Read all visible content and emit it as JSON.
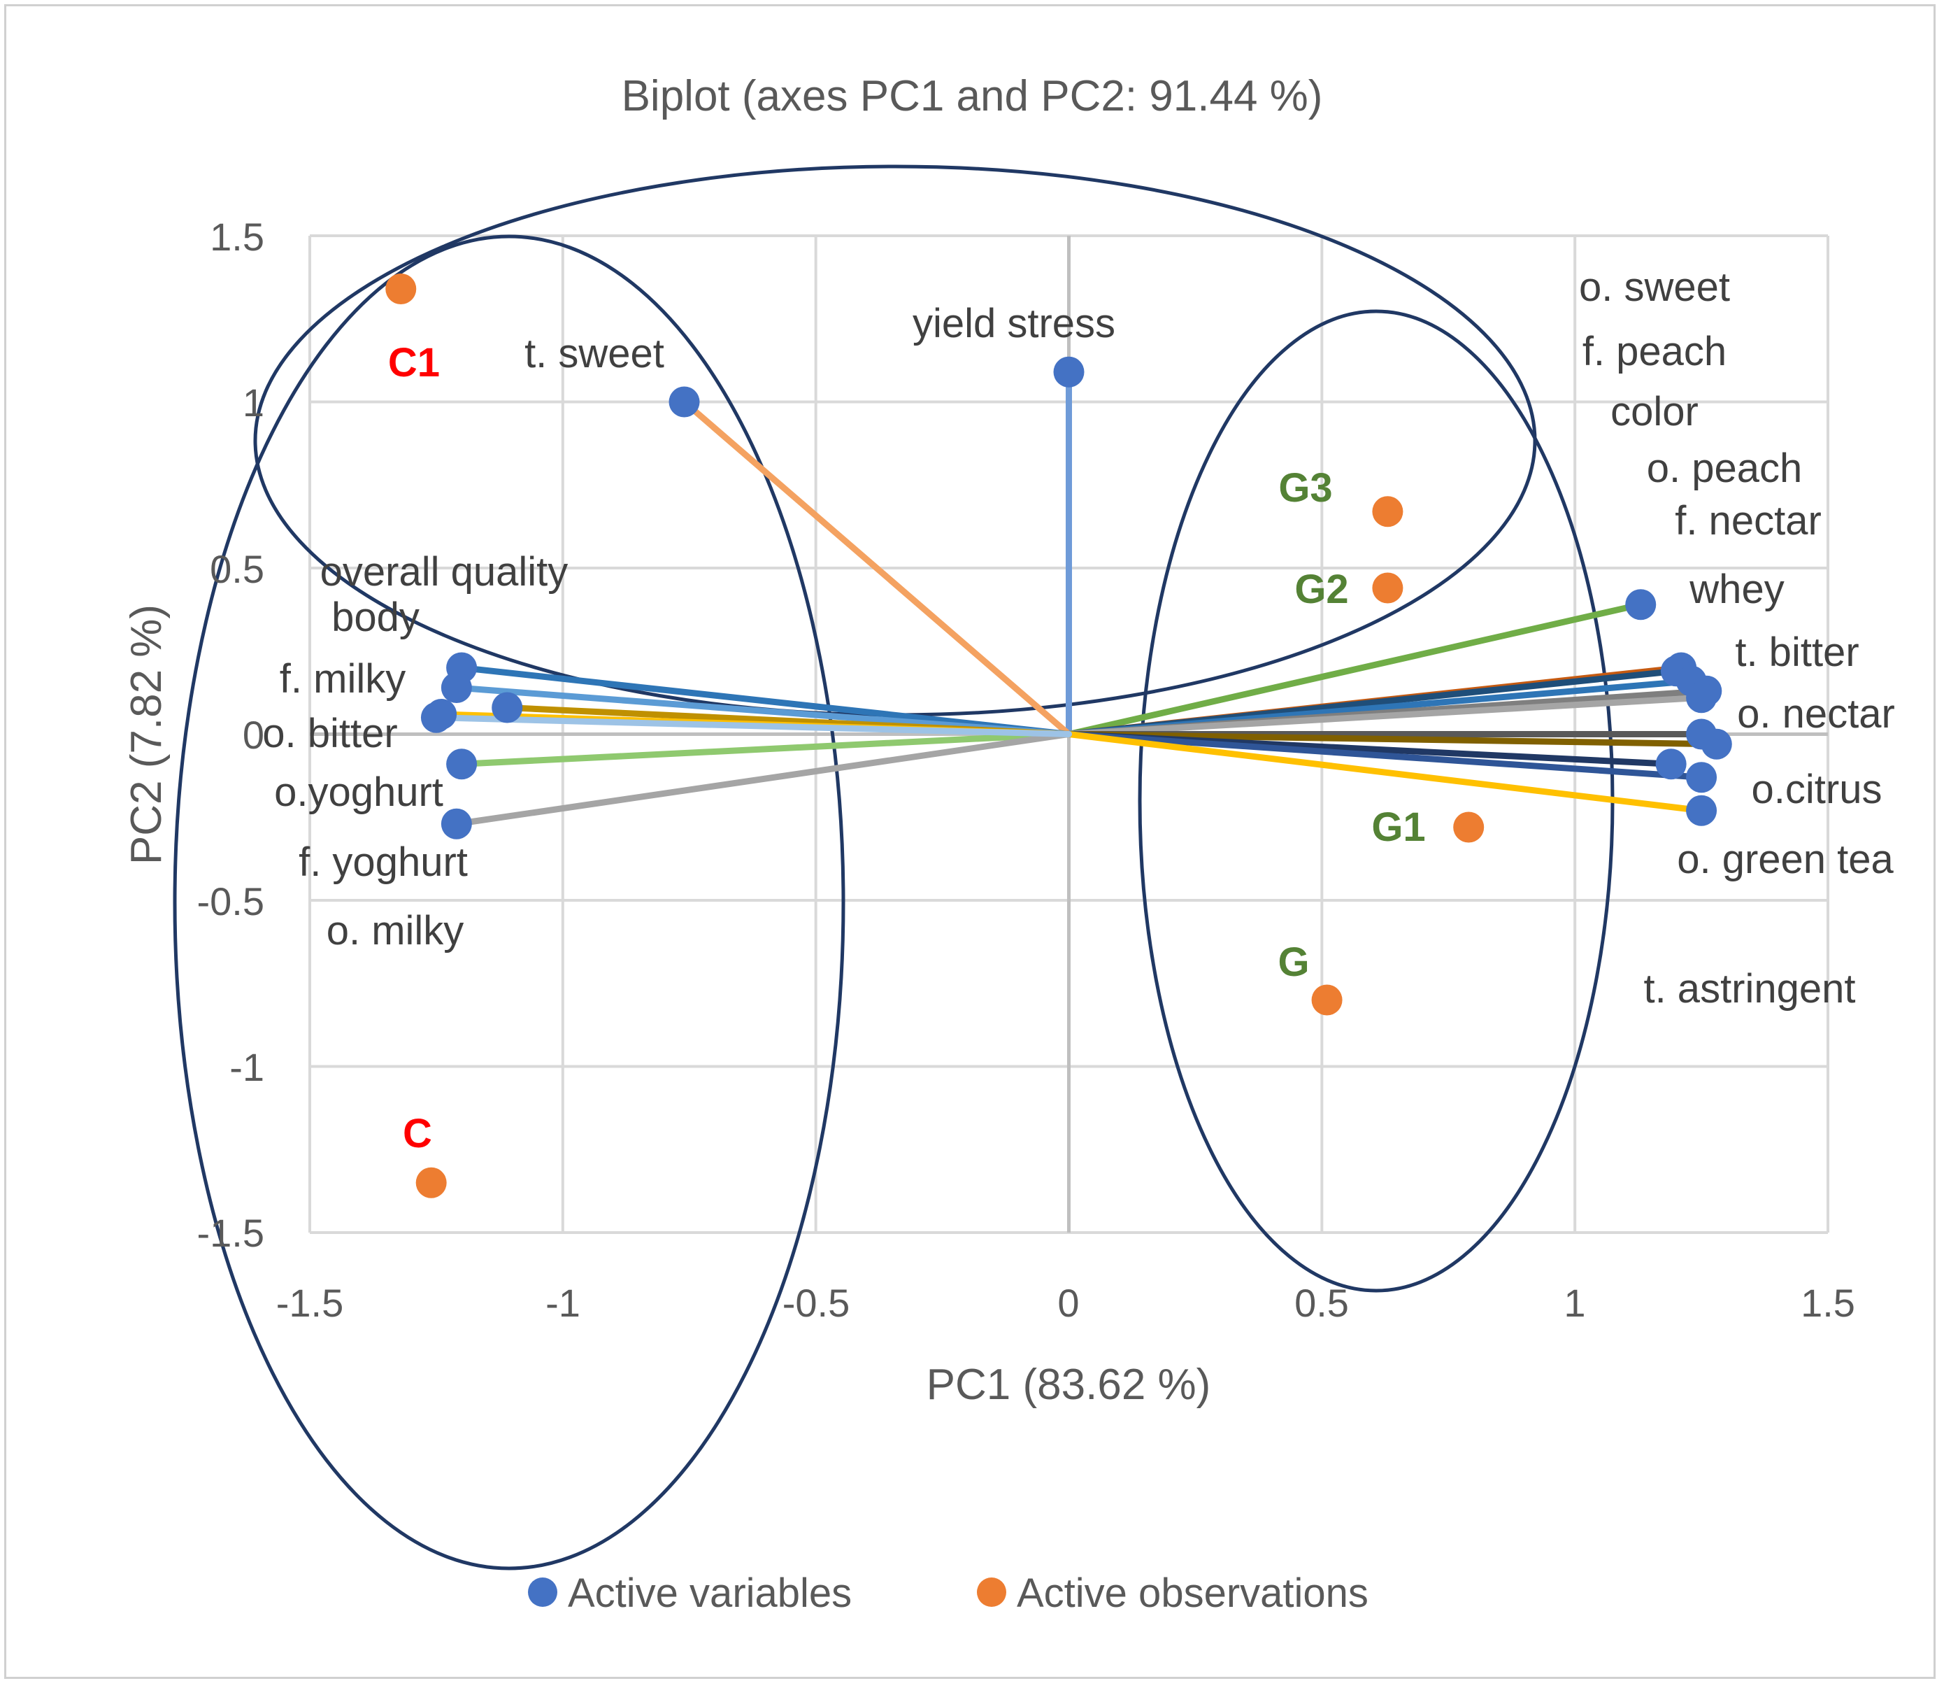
{
  "chart_data": {
    "type": "scatter",
    "title": "Biplot (axes PC1 and PC2: 91.44 %)",
    "xlabel": "PC1 (83.62 %)",
    "ylabel": "PC2 (7.82 %)",
    "xlim": [
      -1.5,
      1.5
    ],
    "ylim": [
      -1.5,
      1.5
    ],
    "x_ticks": [
      "-1.5",
      "-1",
      "-0.5",
      "0",
      "0.5",
      "1",
      "1.5"
    ],
    "y_ticks": [
      "1.5",
      "1",
      "0.5",
      "0",
      "-0.5",
      "-1",
      "-1.5"
    ],
    "grid": true,
    "legend": {
      "position": "bottom",
      "entries": [
        {
          "label": "Active variables",
          "color": "#4472c4"
        },
        {
          "label": "Active observations",
          "color": "#ed7d31"
        }
      ]
    },
    "variables": [
      {
        "name": "yield stress",
        "x": 0.0,
        "y": 1.09,
        "color": "#6f9bd8"
      },
      {
        "name": "t. sweet",
        "x": -0.76,
        "y": 1.0,
        "color": "#f4a261"
      },
      {
        "name": "whey",
        "x": 1.13,
        "y": 0.39,
        "color": "#70ad47"
      },
      {
        "name": "t. bitter",
        "x": 1.21,
        "y": 0.2,
        "color": "#c55a11"
      },
      {
        "name": "o. sweet",
        "x": 1.2,
        "y": 0.19,
        "color": "#1f4e79"
      },
      {
        "name": "f. peach",
        "x": 1.23,
        "y": 0.16,
        "color": "#2e75b6"
      },
      {
        "name": "color",
        "x": 1.26,
        "y": 0.13,
        "color": "#7f7f7f"
      },
      {
        "name": "o. peach",
        "x": 1.25,
        "y": 0.11,
        "color": "#a5a5a5"
      },
      {
        "name": "o. nectar",
        "x": 1.25,
        "y": 0.0,
        "color": "#595959"
      },
      {
        "name": "f. nectar",
        "x": 1.28,
        "y": -0.03,
        "color": "#806000"
      },
      {
        "name": "o.citrus",
        "x": 1.19,
        "y": -0.09,
        "color": "#203864"
      },
      {
        "name": "o. green tea",
        "x": 1.25,
        "y": -0.13,
        "color": "#2f5597"
      },
      {
        "name": "t. astringent",
        "x": 1.25,
        "y": -0.23,
        "color": "#ffc000"
      },
      {
        "name": "overall quality",
        "x": -1.2,
        "y": 0.2,
        "color": "#2e75b6"
      },
      {
        "name": "body",
        "x": -1.21,
        "y": 0.14,
        "color": "#5b9bd5"
      },
      {
        "name": "f. milky",
        "x": -1.11,
        "y": 0.08,
        "color": "#bf9000"
      },
      {
        "name": "o. bitter",
        "x": -1.24,
        "y": 0.06,
        "color": "#ffc000"
      },
      {
        "name": "o.yoghurt",
        "x": -1.2,
        "y": -0.09,
        "color": "#8fc96f"
      },
      {
        "name": "f. yoghurt",
        "x": -1.21,
        "y": -0.27,
        "color": "#a5a5a5"
      },
      {
        "name": "o. milky",
        "x": -1.25,
        "y": 0.05,
        "color": "#9dc3e6"
      }
    ],
    "observations": [
      {
        "name": "C1",
        "x": -1.32,
        "y": 1.34,
        "label_color": "#ff0000"
      },
      {
        "name": "C",
        "x": -1.26,
        "y": -1.35,
        "label_color": "#ff0000"
      },
      {
        "name": "G3",
        "x": 0.63,
        "y": 0.67,
        "label_color": "#548235"
      },
      {
        "name": "G2",
        "x": 0.63,
        "y": 0.44,
        "label_color": "#548235"
      },
      {
        "name": "G1",
        "x": 0.79,
        "y": -0.28,
        "label_color": "#548235"
      },
      {
        "name": "G",
        "x": 0.51,
        "y": -0.8,
        "label_color": "#548235"
      }
    ],
    "point_colors": {
      "variable": "#4472c4",
      "observation": "#ed7d31",
      "ellipse": "#203864"
    }
  }
}
